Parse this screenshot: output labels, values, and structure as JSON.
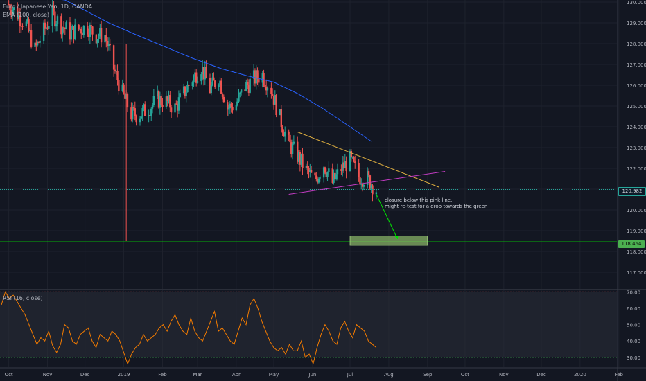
{
  "legend": {
    "symbol": "Euro / Japanese Yen, 1D, OANDA",
    "ema": "EMA (100, close)",
    "rsi": "RSI (16, close)"
  },
  "annotation": {
    "line1": "closure below this pink line,",
    "line2": "might re-test for a drop towards the green"
  },
  "price_tags": {
    "last": "120.982",
    "support": "118.464"
  },
  "colors": {
    "background": "#131722",
    "ema": "#2962ff",
    "rsi": "#f57c00",
    "upper_trendline": "#e0b040",
    "lower_trendline": "#c23cc2",
    "support_line": "#00e600",
    "target_zone": "#8fbc6a"
  },
  "chart_data": [
    {
      "type": "candlestick",
      "symbol": "EURJPY",
      "x_ticks": [
        "Oct",
        "Nov",
        "Dec",
        "2019",
        "Feb",
        "Mar",
        "Apr",
        "May",
        "Jun",
        "Jul",
        "Aug",
        "Sep",
        "Oct",
        "Nov",
        "Dec",
        "2020",
        "Feb"
      ],
      "y_ticks": [
        "117.000",
        "118.000",
        "119.000",
        "120.000",
        "121.000",
        "122.000",
        "123.000",
        "124.000",
        "125.000",
        "126.000",
        "127.000",
        "128.000",
        "129.000",
        "130.000"
      ],
      "ylim": [
        116.2,
        130.1
      ],
      "last_price": 120.982,
      "support_level": 118.464,
      "trendlines": {
        "descending_resistance": [
          [
            "2019-05-20",
            123.75
          ],
          [
            "2019-09-10",
            121.1
          ]
        ],
        "ascending_support": [
          [
            "2019-05-13",
            120.75
          ],
          [
            "2019-09-15",
            121.85
          ]
        ]
      },
      "target_zone": {
        "from": "2019-07-01",
        "to": "2019-09-01",
        "low": 118.3,
        "high": 118.75
      },
      "ema_100": [
        [
          "2018-10-15",
          130.3
        ],
        [
          "2018-11-15",
          130.1
        ],
        [
          "2018-12-01",
          129.6
        ],
        [
          "2018-12-20",
          129.0
        ],
        [
          "2019-01-10",
          128.45
        ],
        [
          "2019-02-01",
          127.9
        ],
        [
          "2019-02-25",
          127.3
        ],
        [
          "2019-03-20",
          126.8
        ],
        [
          "2019-04-10",
          126.45
        ],
        [
          "2019-05-01",
          126.15
        ],
        [
          "2019-05-20",
          125.6
        ],
        [
          "2019-06-10",
          124.85
        ],
        [
          "2019-07-01",
          124.0
        ],
        [
          "2019-07-18",
          123.3
        ]
      ],
      "closes": [
        [
          "2018-10-01",
          129.9
        ],
        [
          "2018-10-08",
          129.4
        ],
        [
          "2018-10-15",
          128.9
        ],
        [
          "2018-10-22",
          127.7
        ],
        [
          "2018-10-29",
          128.6
        ],
        [
          "2018-11-05",
          129.4
        ],
        [
          "2018-11-12",
          128.9
        ],
        [
          "2018-11-19",
          128.5
        ],
        [
          "2018-11-26",
          128.7
        ],
        [
          "2018-12-03",
          128.8
        ],
        [
          "2018-12-10",
          128.4
        ],
        [
          "2018-12-17",
          128.4
        ],
        [
          "2018-12-24",
          126.8
        ],
        [
          "2018-12-31",
          125.6
        ],
        [
          "2019-01-07",
          124.6
        ],
        [
          "2019-01-14",
          124.6
        ],
        [
          "2019-01-21",
          124.9
        ],
        [
          "2019-01-28",
          125.3
        ],
        [
          "2019-02-04",
          125.2
        ],
        [
          "2019-02-11",
          124.9
        ],
        [
          "2019-02-18",
          125.6
        ],
        [
          "2019-02-25",
          126.3
        ],
        [
          "2019-03-04",
          126.9
        ],
        [
          "2019-03-11",
          125.8
        ],
        [
          "2019-03-18",
          126.4
        ],
        [
          "2019-03-25",
          124.9
        ],
        [
          "2019-04-01",
          125.1
        ],
        [
          "2019-04-08",
          125.9
        ],
        [
          "2019-04-15",
          126.3
        ],
        [
          "2019-04-22",
          126.5
        ],
        [
          "2019-04-29",
          125.8
        ],
        [
          "2019-05-06",
          124.4
        ],
        [
          "2019-05-13",
          123.2
        ],
        [
          "2019-05-20",
          122.6
        ],
        [
          "2019-05-27",
          121.9
        ],
        [
          "2019-06-03",
          121.4
        ],
        [
          "2019-06-10",
          122.2
        ],
        [
          "2019-06-17",
          121.3
        ],
        [
          "2019-06-24",
          122.0
        ],
        [
          "2019-07-01",
          122.4
        ],
        [
          "2019-07-08",
          121.6
        ],
        [
          "2019-07-15",
          121.5
        ],
        [
          "2019-07-22",
          120.98
        ]
      ]
    },
    {
      "type": "line",
      "name": "RSI",
      "ylim": [
        24,
        71
      ],
      "y_ticks": [
        "30.00",
        "40.00",
        "50.00",
        "60.00",
        "70.00"
      ],
      "bands": [
        30,
        70
      ],
      "values": [
        62,
        70,
        66,
        68,
        64,
        60,
        56,
        50,
        44,
        38,
        42,
        40,
        46,
        37,
        33,
        38,
        50,
        48,
        40,
        38,
        44,
        46,
        48,
        40,
        36,
        44,
        42,
        40,
        46,
        44,
        40,
        33,
        26,
        32,
        36,
        38,
        44,
        40,
        42,
        44,
        48,
        50,
        46,
        52,
        56,
        50,
        46,
        44,
        54,
        46,
        42,
        40,
        46,
        52,
        58,
        46,
        48,
        44,
        40,
        38,
        46,
        54,
        50,
        62,
        66,
        60,
        52,
        46,
        40,
        36,
        34,
        36,
        32,
        38,
        34,
        34,
        40,
        30,
        32,
        26,
        36,
        44,
        50,
        46,
        40,
        38,
        48,
        52,
        46,
        42,
        50,
        48,
        46,
        40,
        38,
        36
      ]
    }
  ]
}
